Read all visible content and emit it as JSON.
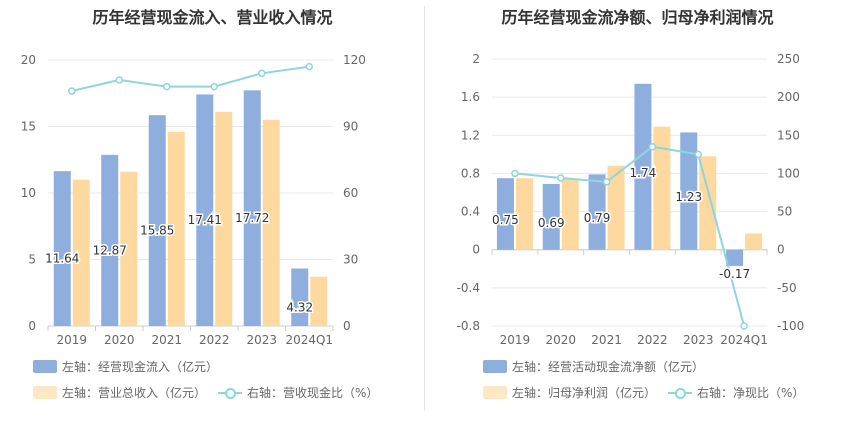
{
  "colors": {
    "blue": "#8eaede",
    "orange": "#fdd9a0",
    "teal": "#8fd5dc",
    "grid": "#e8e8e8",
    "text": "#666666"
  },
  "chart_data": [
    {
      "type": "bar",
      "title": "历年经营现金流入、营业收入情况",
      "categories": [
        "2019",
        "2020",
        "2021",
        "2022",
        "2023",
        "2024Q1"
      ],
      "yaxis_left": {
        "range": [
          0,
          20
        ],
        "ticks": [
          "0",
          "5",
          "10",
          "15",
          "20"
        ]
      },
      "yaxis_right": {
        "range": [
          0,
          120
        ],
        "ticks": [
          "0",
          "30",
          "60",
          "90",
          "120"
        ]
      },
      "series": [
        {
          "name": "左轴：经营现金流入（亿元）",
          "kind": "bar",
          "axis": "left",
          "values": [
            11.64,
            12.87,
            15.85,
            17.41,
            17.72,
            4.32
          ],
          "labels": [
            "11.64",
            "12.87",
            "15.85",
            "17.41",
            "17.72",
            "4.32"
          ]
        },
        {
          "name": "左轴：营业总收入（亿元）",
          "kind": "bar",
          "axis": "left",
          "values": [
            11.0,
            11.6,
            14.6,
            16.1,
            15.5,
            3.7
          ]
        },
        {
          "name": "右轴：营收现金比（%）",
          "kind": "line",
          "axis": "right",
          "values": [
            106,
            111,
            108,
            108,
            114,
            117
          ]
        }
      ],
      "legend": "bottom"
    },
    {
      "type": "bar",
      "title": "历年经营现金流净额、归母净利润情况",
      "categories": [
        "2019",
        "2020",
        "2021",
        "2022",
        "2023",
        "2024Q1"
      ],
      "yaxis_left": {
        "range": [
          -0.8,
          2
        ],
        "ticks": [
          "-0.8",
          "-0.4",
          "0",
          "0.4",
          "0.8",
          "1.2",
          "1.6",
          "2"
        ]
      },
      "yaxis_right": {
        "range": [
          -100,
          250
        ],
        "ticks": [
          "-100",
          "-50",
          "0",
          "50",
          "100",
          "150",
          "200",
          "250"
        ]
      },
      "series": [
        {
          "name": "左轴：经营活动现金流净额（亿元）",
          "kind": "bar",
          "axis": "left",
          "values": [
            0.75,
            0.69,
            0.79,
            1.74,
            1.23,
            -0.17
          ],
          "labels": [
            "0.75",
            "0.69",
            "0.79",
            "1.74",
            "1.23",
            "-0.17"
          ]
        },
        {
          "name": "左轴：归母净利润（亿元）",
          "kind": "bar",
          "axis": "left",
          "values": [
            0.75,
            0.74,
            0.88,
            1.29,
            0.98,
            0.17
          ]
        },
        {
          "name": "右轴：净现比（%）",
          "kind": "line",
          "axis": "right",
          "values": [
            100,
            94,
            89,
            135,
            125,
            -100
          ]
        }
      ],
      "legend": "bottom"
    }
  ]
}
